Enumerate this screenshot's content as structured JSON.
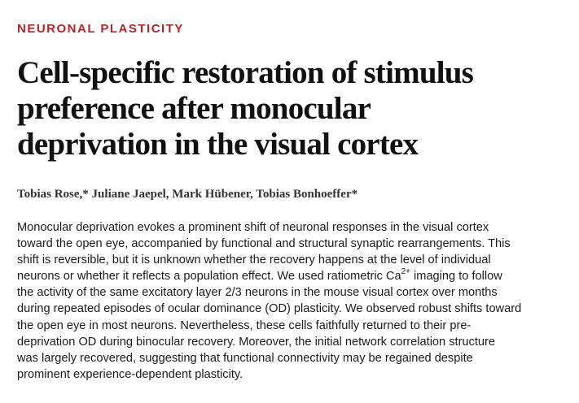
{
  "section_label": "NEURONAL PLASTICITY",
  "title_lines": [
    "Cell-specific restoration of stimulus",
    "preference after monocular",
    "deprivation in the visual cortex"
  ],
  "authors": "Tobias Rose,* Juliane Jaepel, Mark Hübener, Tobias Bonhoeffer*",
  "abstract": {
    "line1": "Monocular deprivation evokes a prominent shift of neuronal responses in the visual cortex",
    "line2": "toward the open eye, accompanied by functional and structural synaptic rearrangements. This",
    "line3": "shift is reversible, but it is unknown whether the recovery happens at the level of individual",
    "line4": "neurons or whether it reflects a population effect. We used ratiometric Ca",
    "line4_sup": "2+",
    "line4_tail": " imaging to follow",
    "line5": "the activity of the same excitatory layer 2/3 neurons in the mouse visual cortex over months",
    "line6": "during repeated episodes of ocular dominance (OD) plasticity. We observed robust shifts toward",
    "line7": "the open eye in most neurons. Nevertheless, these cells faithfully returned to their pre-",
    "line8": "deprivation OD during binocular recovery. Moreover, the initial network correlation structure",
    "line9": "was largely recovered, suggesting that functional connectivity may be regained despite",
    "line10": "prominent experience-dependent plasticity."
  }
}
